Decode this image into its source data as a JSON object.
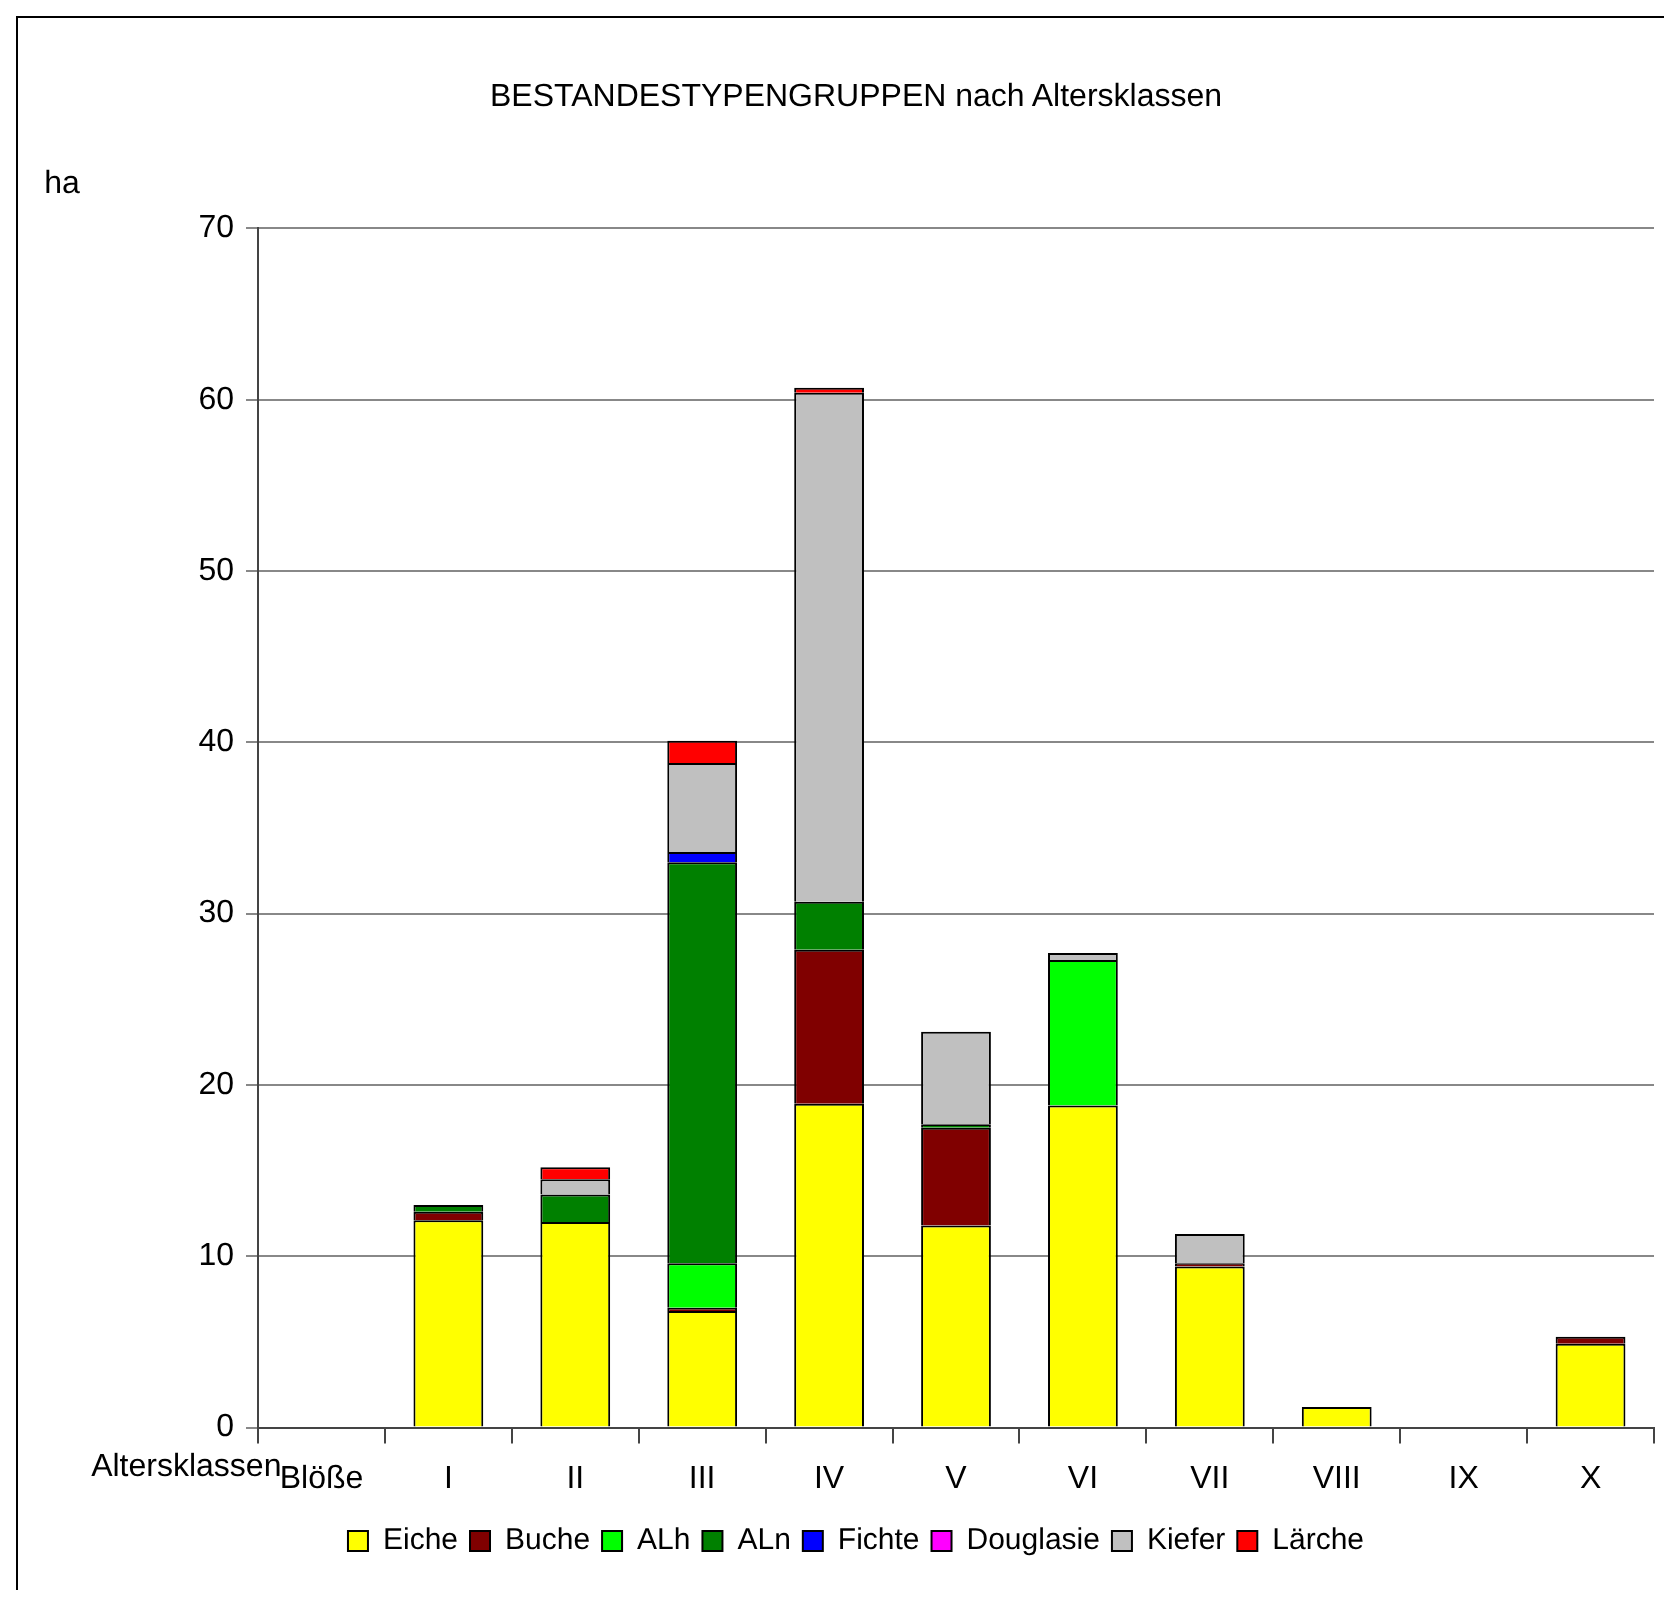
{
  "chart_data": {
    "type": "bar",
    "title": "BESTANDESTYPENGRUPPEN nach Altersklassen",
    "ylabel": "ha",
    "xlabel": "Altersklassen",
    "categories": [
      "Blöße",
      "I",
      "II",
      "III",
      "IV",
      "V",
      "VI",
      "VII",
      "VIII",
      "IX",
      "X"
    ],
    "stacked": true,
    "ylim": [
      0,
      70
    ],
    "yticks": [
      0,
      10,
      20,
      30,
      40,
      50,
      60,
      70
    ],
    "grid": "y",
    "legend": "bottom",
    "series": [
      {
        "name": "Eiche",
        "color": "#ffff00",
        "values": [
          0,
          12.1,
          12.0,
          6.8,
          18.9,
          11.8,
          18.8,
          9.4,
          1.2,
          0,
          4.9
        ]
      },
      {
        "name": "Buche",
        "color": "#800000",
        "values": [
          0,
          0.5,
          0,
          0.2,
          9.0,
          5.7,
          0,
          0.2,
          0,
          0,
          0.4
        ]
      },
      {
        "name": "ALh",
        "color": "#00ff00",
        "values": [
          0,
          0,
          0,
          2.6,
          0,
          0,
          8.5,
          0,
          0,
          0,
          0
        ]
      },
      {
        "name": "ALn",
        "color": "#008000",
        "values": [
          0,
          0.4,
          1.6,
          23.4,
          2.8,
          0.2,
          0,
          0,
          0,
          0,
          0
        ]
      },
      {
        "name": "Fichte",
        "color": "#0000ff",
        "values": [
          0,
          0,
          0,
          0.6,
          0,
          0,
          0,
          0,
          0,
          0,
          0
        ]
      },
      {
        "name": "Douglasie",
        "color": "#ff00ff",
        "values": [
          0,
          0,
          0,
          0,
          0,
          0,
          0,
          0,
          0,
          0,
          0
        ]
      },
      {
        "name": "Kiefer",
        "color": "#c0c0c0",
        "values": [
          0,
          0,
          0.9,
          5.2,
          29.7,
          5.4,
          0.4,
          1.7,
          0,
          0,
          0
        ]
      },
      {
        "name": "Lärche",
        "color": "#ff0000",
        "values": [
          0,
          0,
          0.7,
          1.3,
          0.3,
          0,
          0,
          0,
          0,
          0,
          0
        ]
      }
    ]
  }
}
